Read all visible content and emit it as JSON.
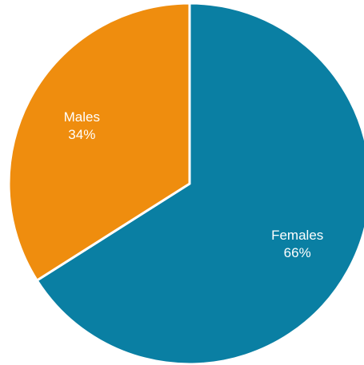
{
  "chart_data": {
    "type": "pie",
    "title": "",
    "slices": [
      {
        "category": "Females",
        "value": 66,
        "value_label": "66%",
        "color": "#0A7FA3"
      },
      {
        "category": "Males",
        "value": 34,
        "value_label": "34%",
        "color": "#EF8D0E"
      }
    ],
    "start_angle_deg": 0,
    "direction": "clockwise",
    "separator_color": "#ffffff",
    "legend": "none",
    "data_labels": "inside"
  }
}
